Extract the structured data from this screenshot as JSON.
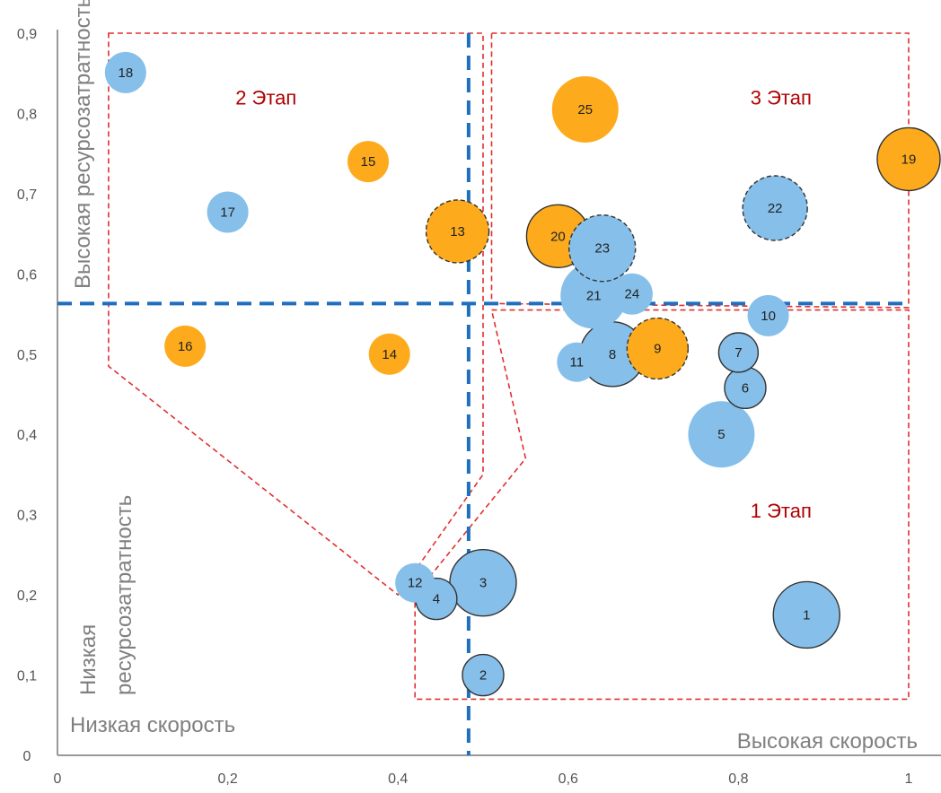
{
  "chart_data": {
    "type": "bubble",
    "xlim": [
      0,
      1.0
    ],
    "ylim": [
      0,
      0.9
    ],
    "x_ticks": [
      {
        "value": 0,
        "label": "0"
      },
      {
        "value": 0.2,
        "label": "0,2"
      },
      {
        "value": 0.4,
        "label": "0,4"
      },
      {
        "value": 0.6,
        "label": "0,6"
      },
      {
        "value": 0.8,
        "label": "0,8"
      },
      {
        "value": 1.0,
        "label": "1"
      }
    ],
    "y_ticks": [
      {
        "value": 0,
        "label": "0"
      },
      {
        "value": 0.1,
        "label": "0,1"
      },
      {
        "value": 0.2,
        "label": "0,2"
      },
      {
        "value": 0.3,
        "label": "0,3"
      },
      {
        "value": 0.4,
        "label": "0,4"
      },
      {
        "value": 0.5,
        "label": "0,5"
      },
      {
        "value": 0.6,
        "label": "0,6"
      },
      {
        "value": 0.7,
        "label": "0,7"
      },
      {
        "value": 0.8,
        "label": "0,8"
      },
      {
        "value": 0.9,
        "label": "0,9"
      }
    ],
    "corner_labels": {
      "low_speed": "Низкая скорость",
      "high_speed": "Высокая скорость",
      "high_resource": "Высокая ресурсозатратность",
      "low_resource_line1": "Низкая",
      "low_resource_line2": "ресурсозатратность"
    },
    "stage_labels": [
      {
        "text": "1 Этап",
        "x": 0.85,
        "y": 0.305
      },
      {
        "text": "2 Этап",
        "x": 0.245,
        "y": 0.82
      },
      {
        "text": "3 Этап",
        "x": 0.85,
        "y": 0.82
      }
    ],
    "threshold_lines": {
      "x": 0.483,
      "y": 0.563,
      "color": "#1f6fbf"
    },
    "colors": {
      "blue": "#86c0ea",
      "orange": "#fdab1d",
      "outline": "#333333",
      "region": "#e03030",
      "axis": "#999999"
    },
    "regions": [
      {
        "name": "stage-2",
        "points": [
          [
            0.06,
            0.9
          ],
          [
            0.5,
            0.9
          ],
          [
            0.5,
            0.563
          ],
          [
            0.5,
            0.35
          ],
          [
            0.4,
            0.2
          ],
          [
            0.06,
            0.485
          ]
        ]
      },
      {
        "name": "stage-3",
        "points": [
          [
            0.51,
            0.9
          ],
          [
            1.0,
            0.9
          ],
          [
            1.0,
            0.558
          ],
          [
            0.51,
            0.563
          ]
        ]
      },
      {
        "name": "stage-1",
        "points": [
          [
            0.51,
            0.555
          ],
          [
            1.0,
            0.555
          ],
          [
            1.0,
            0.07
          ],
          [
            0.42,
            0.07
          ],
          [
            0.42,
            0.2
          ],
          [
            0.55,
            0.37
          ]
        ]
      }
    ],
    "bubbles": [
      {
        "id": "1",
        "x": 0.88,
        "y": 0.175,
        "size": 37,
        "color": "blue",
        "outline": "solid"
      },
      {
        "id": "2",
        "x": 0.5,
        "y": 0.1,
        "size": 23,
        "color": "blue",
        "outline": "solid"
      },
      {
        "id": "3",
        "x": 0.5,
        "y": 0.215,
        "size": 37,
        "color": "blue",
        "outline": "solid"
      },
      {
        "id": "4",
        "x": 0.445,
        "y": 0.195,
        "size": 23,
        "color": "blue",
        "outline": "solid"
      },
      {
        "id": "5",
        "x": 0.78,
        "y": 0.4,
        "size": 37,
        "color": "blue",
        "outline": "none"
      },
      {
        "id": "6",
        "x": 0.808,
        "y": 0.458,
        "size": 23,
        "color": "blue",
        "outline": "solid"
      },
      {
        "id": "7",
        "x": 0.8,
        "y": 0.502,
        "size": 22,
        "color": "blue",
        "outline": "solid"
      },
      {
        "id": "8",
        "x": 0.652,
        "y": 0.5,
        "size": 36,
        "color": "blue",
        "outline": "solid"
      },
      {
        "id": "9",
        "x": 0.705,
        "y": 0.507,
        "size": 34,
        "color": "orange",
        "outline": "dashed"
      },
      {
        "id": "10",
        "x": 0.835,
        "y": 0.548,
        "size": 23,
        "color": "blue",
        "outline": "none"
      },
      {
        "id": "11",
        "x": 0.61,
        "y": 0.49,
        "size": 22,
        "color": "blue",
        "outline": "none"
      },
      {
        "id": "12",
        "x": 0.42,
        "y": 0.215,
        "size": 22,
        "color": "blue",
        "outline": "none"
      },
      {
        "id": "13",
        "x": 0.47,
        "y": 0.653,
        "size": 35,
        "color": "orange",
        "outline": "dashed"
      },
      {
        "id": "14",
        "x": 0.39,
        "y": 0.5,
        "size": 23,
        "color": "orange",
        "outline": "none"
      },
      {
        "id": "15",
        "x": 0.365,
        "y": 0.74,
        "size": 23,
        "color": "orange",
        "outline": "none"
      },
      {
        "id": "16",
        "x": 0.15,
        "y": 0.51,
        "size": 23,
        "color": "orange",
        "outline": "none"
      },
      {
        "id": "17",
        "x": 0.2,
        "y": 0.677,
        "size": 23,
        "color": "blue",
        "outline": "none"
      },
      {
        "id": "18",
        "x": 0.08,
        "y": 0.851,
        "size": 23,
        "color": "blue",
        "outline": "none"
      },
      {
        "id": "19",
        "x": 1.0,
        "y": 0.743,
        "size": 35,
        "color": "orange",
        "outline": "solid"
      },
      {
        "id": "20",
        "x": 0.588,
        "y": 0.647,
        "size": 35,
        "color": "orange",
        "outline": "solid"
      },
      {
        "id": "21",
        "x": 0.63,
        "y": 0.573,
        "size": 37,
        "color": "blue",
        "outline": "none"
      },
      {
        "id": "22",
        "x": 0.843,
        "y": 0.682,
        "size": 36,
        "color": "blue",
        "outline": "dashed"
      },
      {
        "id": "23",
        "x": 0.64,
        "y": 0.632,
        "size": 37,
        "color": "blue",
        "outline": "dashed"
      },
      {
        "id": "24",
        "x": 0.675,
        "y": 0.575,
        "size": 23,
        "color": "blue",
        "outline": "none"
      },
      {
        "id": "25",
        "x": 0.62,
        "y": 0.805,
        "size": 37,
        "color": "orange",
        "outline": "none"
      }
    ]
  }
}
